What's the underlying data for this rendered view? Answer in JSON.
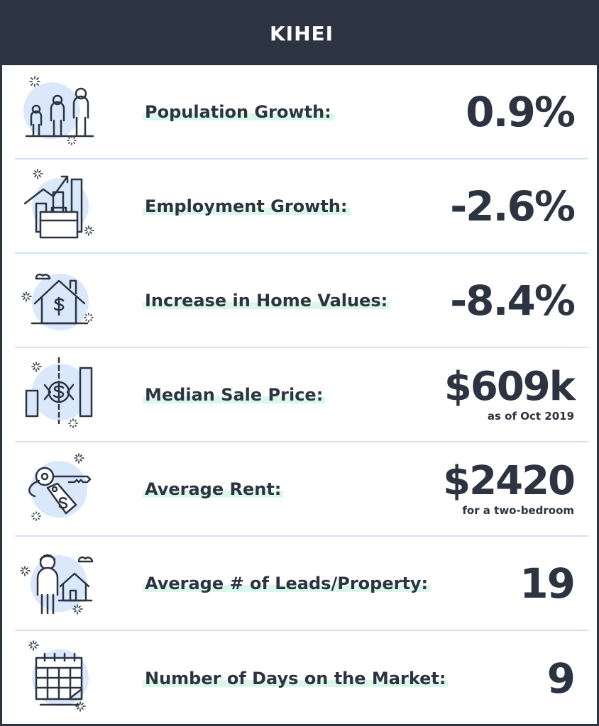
{
  "header": {
    "title": "KIHEI"
  },
  "stats": [
    {
      "label": "Population Growth:",
      "value": "0.9%",
      "note": "",
      "icon": "people-icon"
    },
    {
      "label": "Employment Growth:",
      "value": "-2.6%",
      "note": "",
      "icon": "briefcase-chart-icon"
    },
    {
      "label": "Increase in Home Values:",
      "value": "-8.4%",
      "note": "",
      "icon": "house-dollar-icon"
    },
    {
      "label": "Median Sale Price:",
      "value": "$609k",
      "note": "as of Oct 2019",
      "icon": "sale-price-chart-icon"
    },
    {
      "label": "Average Rent:",
      "value": "$2420",
      "note": "for a two-bedroom",
      "icon": "key-tag-icon"
    },
    {
      "label": "Average # of Leads/Property:",
      "value": "19",
      "note": "",
      "icon": "person-house-icon"
    },
    {
      "label": "Number of Days on the Market:",
      "value": "9",
      "note": "",
      "icon": "calendar-icon"
    }
  ],
  "colors": {
    "dark": "#2b3440",
    "icon_fill": "#dbe7fb",
    "highlight": "#d9f7ea",
    "divider": "#d3e3f5"
  }
}
